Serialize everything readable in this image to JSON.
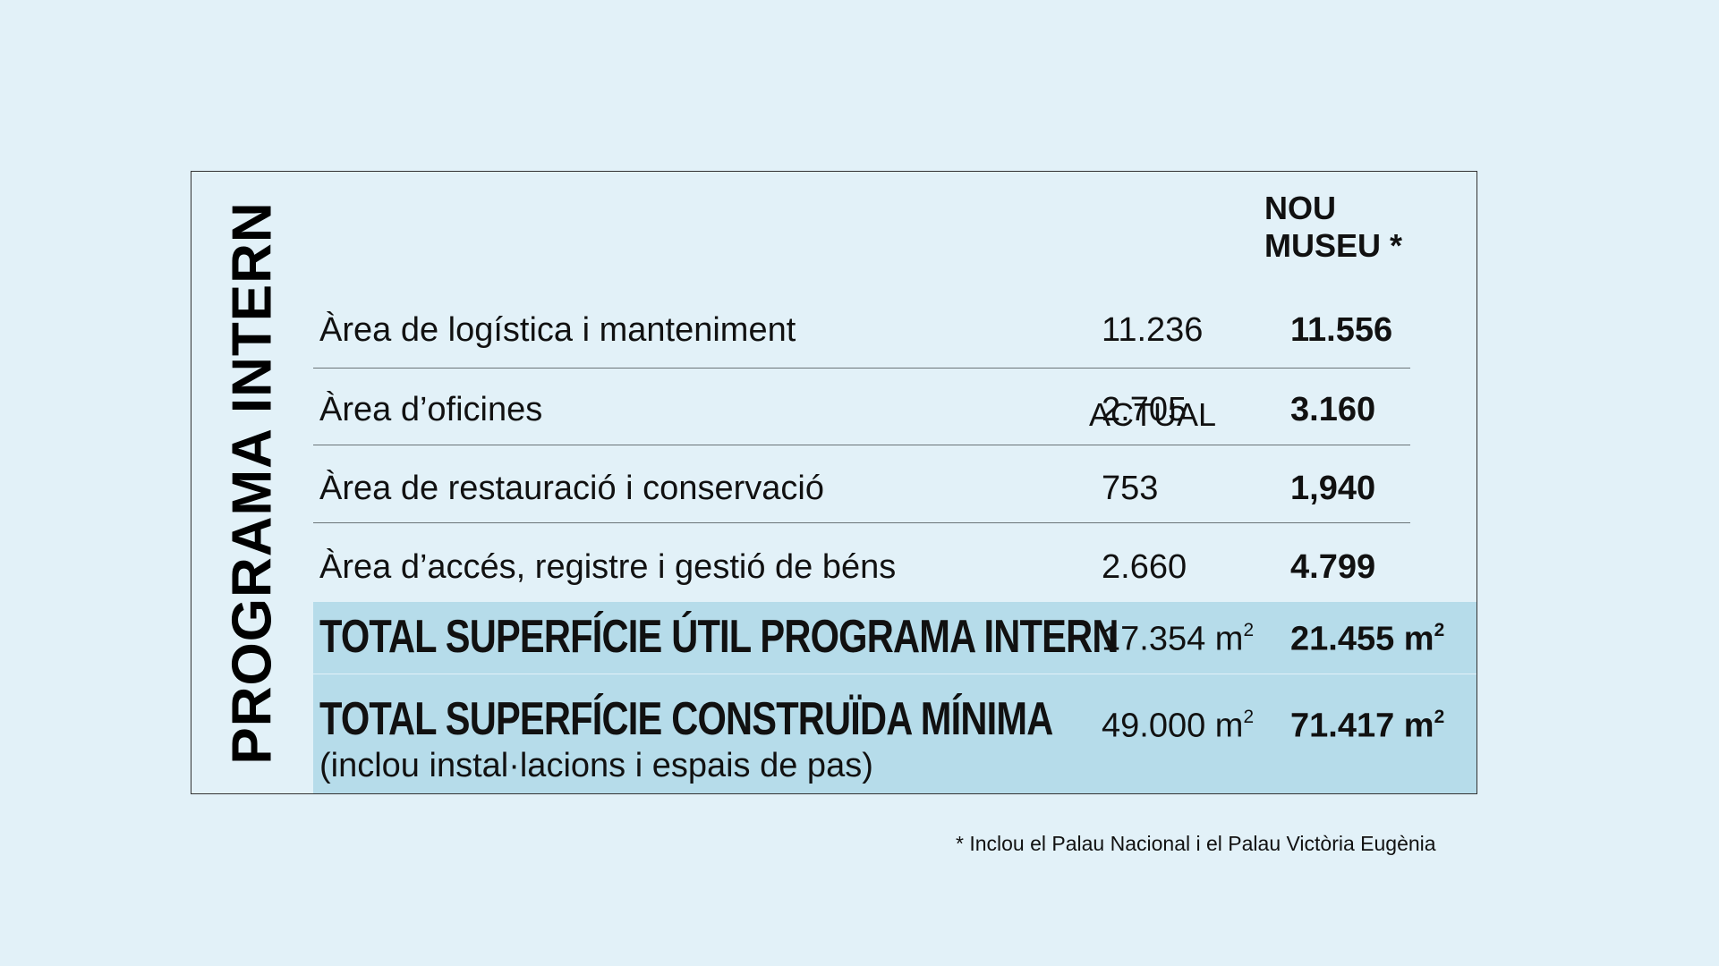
{
  "side_title": "PROGRAMA INTERN",
  "headers": {
    "actual": "ACTUAL",
    "nou_line1": "NOU",
    "nou_line2": "MUSEU *"
  },
  "rows": [
    {
      "label": "Àrea de logística i manteniment",
      "actual": "11.236",
      "nou": "11.556"
    },
    {
      "label": "Àrea d’oficines",
      "actual": "2.705",
      "nou": "3.160"
    },
    {
      "label": "Àrea de restauració i conservació",
      "actual": "753",
      "nou": "1,940"
    },
    {
      "label": "Àrea d’accés, registre i gestió de béns",
      "actual": "2.660",
      "nou": "4.799"
    }
  ],
  "totals": [
    {
      "label": "TOTAL SUPERFÍCIE ÚTIL PROGRAMA INTERN",
      "sub": "",
      "actual": "17.354 m",
      "nou": "21.455 m",
      "unit_sup": "2"
    },
    {
      "label": "TOTAL SUPERFÍCIE CONSTRUÏDA MÍNIMA",
      "sub": "(inclou instal·lacions i espais de pas)",
      "actual": "49.000 m",
      "nou": "71.417 m",
      "unit_sup": "2"
    }
  ],
  "footnote": "* Inclou el Palau Nacional i el Palau Victòria Eugènia",
  "colors": {
    "background": "#e2f1f8",
    "total_band": "#b6dcea"
  }
}
